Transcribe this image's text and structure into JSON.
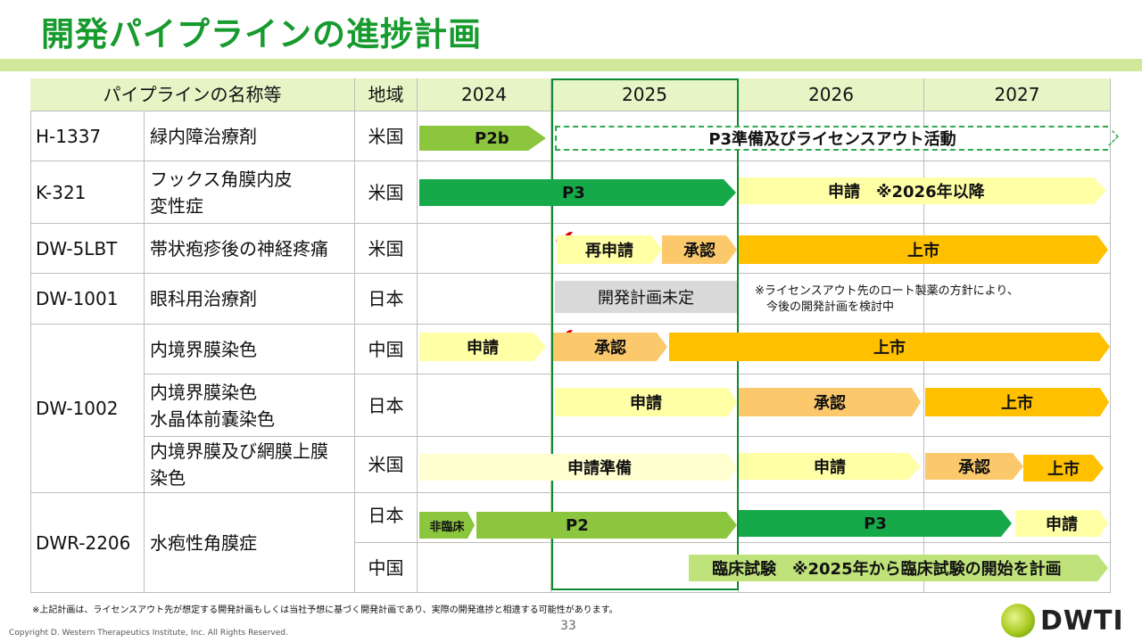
{
  "page": {
    "title": "開発パイプラインの進捗計画",
    "footnote": "※上記計画は、ライセンスアウト先が想定する開発計画もしくは当社予想に基づく開発計画であり、実際の開発進捗と相違する可能性があります。",
    "copyright": "Copyright D. Western Therapeutics Institute, Inc. All Rights Reserved.",
    "page_number": "33",
    "logo_text": "DWTI"
  },
  "table": {
    "headers": {
      "pipeline": "パイプラインの名称等",
      "region": "地域",
      "years": [
        "2024",
        "2025",
        "2026",
        "2027"
      ]
    },
    "codes": [
      "H-1337",
      "K-321",
      "DW-5LBT",
      "DW-1001",
      "DW-1002",
      "DWR-2206"
    ],
    "rows": [
      {
        "indication": "緑内障治療剤",
        "region": "米国"
      },
      {
        "indication": "フックス角膜内皮\n変性症",
        "region": "米国"
      },
      {
        "indication": "帯状疱疹後の神経疼痛",
        "region": "米国"
      },
      {
        "indication": "眼科用治療剤",
        "region": "日本"
      },
      {
        "indication": "内境界膜染色",
        "region": "中国"
      },
      {
        "indication": "内境界膜染色\n水晶体前嚢染色",
        "region": "日本"
      },
      {
        "indication": "内境界膜及び網膜上膜\n染色",
        "region": "米国"
      },
      {
        "indication": "水疱性角膜症",
        "region": "日本"
      },
      {
        "indication": "",
        "region": "中国"
      }
    ]
  },
  "bars": [
    {
      "label": "P2b",
      "color": "#8cc63f"
    },
    {
      "label": "P3準備及びライセンスアウト活動",
      "color": "#ffffff",
      "border": "#2fa84f"
    },
    {
      "label": "P3",
      "color": "#15a94a"
    },
    {
      "label": "申請　※2026年以降",
      "color": "#ffffa6"
    },
    {
      "label": "再申請",
      "color": "#ffffa6"
    },
    {
      "label": "承認",
      "color": "#fcc86c"
    },
    {
      "label": "上市",
      "color": "#ffc000"
    },
    {
      "label": "開発計画未定",
      "color": "#d9d9d9"
    },
    {
      "label": "申請",
      "color": "#ffffa6"
    },
    {
      "label": "承認",
      "color": "#fcc86c"
    },
    {
      "label": "上市",
      "color": "#ffc000"
    },
    {
      "label": "申請",
      "color": "#ffffa6"
    },
    {
      "label": "承認",
      "color": "#fcc86c"
    },
    {
      "label": "上市",
      "color": "#ffc000"
    },
    {
      "label": "申請準備",
      "color": "#ffffd0"
    },
    {
      "label": "申請",
      "color": "#ffffa6"
    },
    {
      "label": "承認",
      "color": "#fcc86c"
    },
    {
      "label": "上市",
      "color": "#ffc000"
    },
    {
      "label": "非臨床",
      "color": "#8cc63f"
    },
    {
      "label": "P2",
      "color": "#8cc63f"
    },
    {
      "label": "P3",
      "color": "#15a94a"
    },
    {
      "label": "申請",
      "color": "#ffffa6"
    },
    {
      "label": "臨床試験　※2025年から臨床試験の開始を計画",
      "color": "#bfe27a"
    }
  ],
  "notes": {
    "dw1001": "※ライセンスアウト先のロート製薬の方針により、\n　今後の開発計画を検討中"
  },
  "status_marks": [
    "✔",
    "✔"
  ]
}
